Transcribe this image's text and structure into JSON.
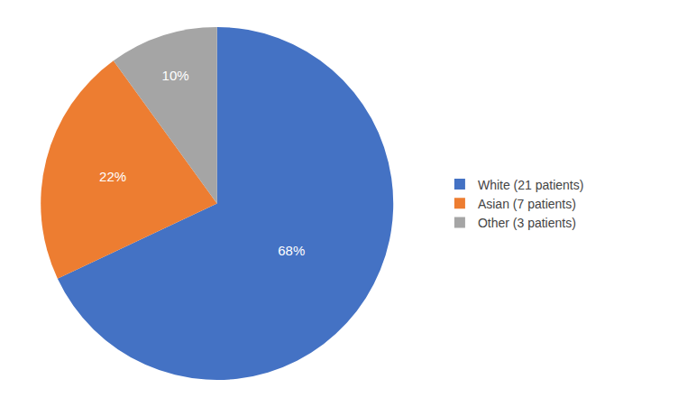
{
  "chart_data": {
    "type": "pie",
    "categories": [
      "White (21 patients)",
      "Asian (7 patients)",
      "Other (3 patients)"
    ],
    "values": [
      68,
      22,
      10
    ],
    "value_labels": [
      "68%",
      "22%",
      "10%"
    ],
    "colors": [
      "#4472C4",
      "#ED7D31",
      "#A5A5A5"
    ],
    "data_labels": true,
    "legend": "right"
  }
}
